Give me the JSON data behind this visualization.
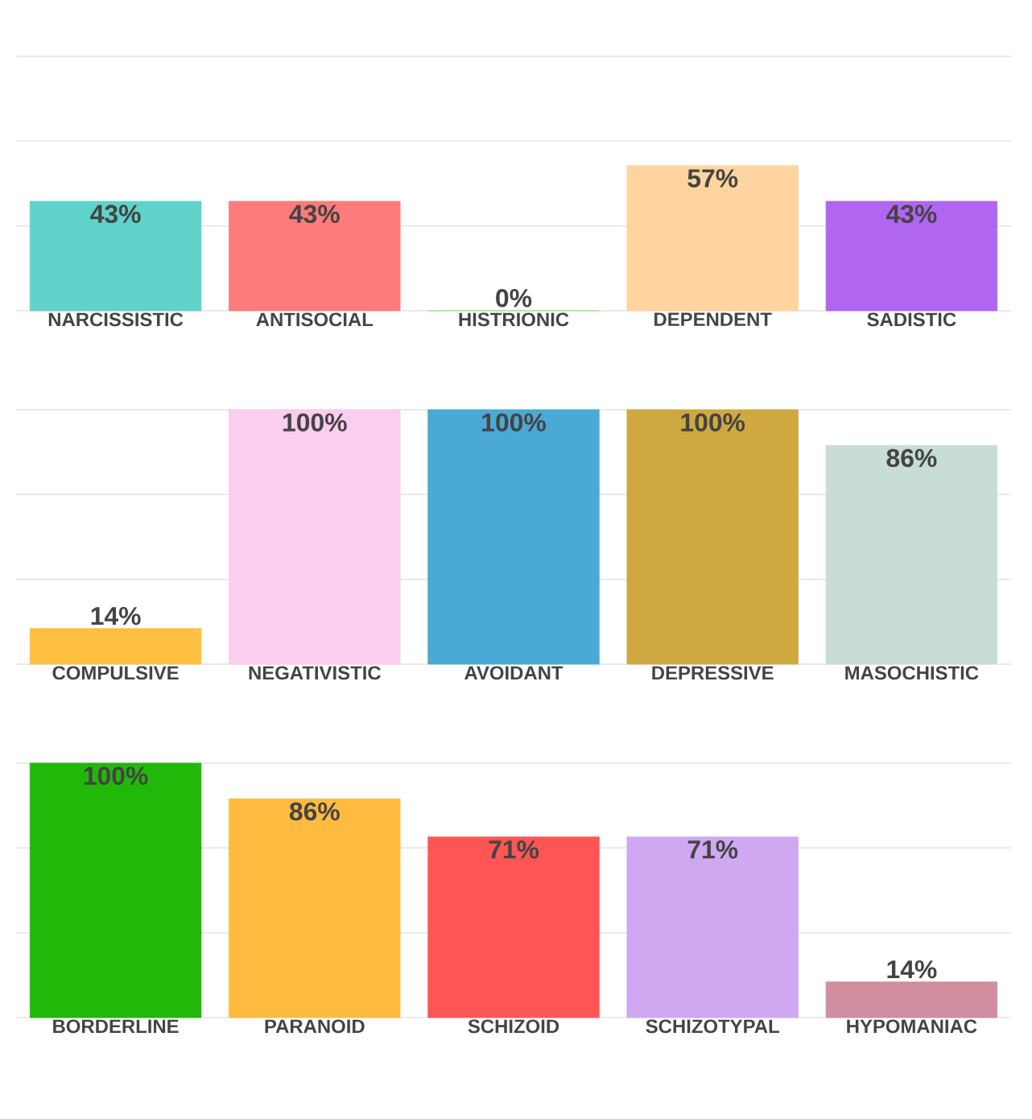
{
  "chart_data": [
    {
      "type": "bar",
      "categories": [
        "NARCISSISTIC",
        "ANTISOCIAL",
        "HISTRIONIC",
        "DEPENDENT",
        "SADISTIC"
      ],
      "values": [
        43,
        43,
        0,
        57,
        43
      ],
      "value_labels": [
        "43%",
        "43%",
        "0%",
        "57%",
        "43%"
      ],
      "colors": [
        "#5fd3c9",
        "#ff7b7b",
        "#90ee70",
        "#ffd49e",
        "#b066f0"
      ],
      "ylim": [
        0,
        100
      ],
      "yticks": [
        {
          "value": 0,
          "label": null
        },
        {
          "value": 33.3,
          "label": null
        },
        {
          "value": 66.7,
          "label": null
        },
        {
          "value": 100,
          "label": null
        }
      ],
      "grid": "y",
      "tick_labels": "x"
    },
    {
      "type": "bar",
      "categories": [
        "COMPULSIVE",
        "NEGATIVISTIC",
        "AVOIDANT",
        "DEPRESSIVE",
        "MASOCHISTIC"
      ],
      "values": [
        14,
        100,
        100,
        100,
        86
      ],
      "value_labels": [
        "14%",
        "100%",
        "100%",
        "100%",
        "86%"
      ],
      "colors": [
        "#ffbf40",
        "#fbcdee",
        "#4ba9d6",
        "#cfa940",
        "#c8ddd4"
      ],
      "ylim": [
        0,
        100
      ],
      "yticks": [
        {
          "value": 0,
          "label": null
        },
        {
          "value": 33.3,
          "label": null
        },
        {
          "value": 66.7,
          "label": null
        },
        {
          "value": 100,
          "label": null
        }
      ],
      "grid": "y",
      "tick_labels": "x"
    },
    {
      "type": "bar",
      "categories": [
        "BORDERLINE",
        "PARANOID",
        "SCHIZOID",
        "SCHIZOTYPAL",
        "HYPOMANIAC"
      ],
      "values": [
        100,
        86,
        71,
        71,
        14
      ],
      "value_labels": [
        "100%",
        "86%",
        "71%",
        "71%",
        "14%"
      ],
      "colors": [
        "#22b80a",
        "#ffbb40",
        "#ff5555",
        "#d0a8f2",
        "#d08ea0"
      ],
      "ylim": [
        0,
        100
      ],
      "yticks": [
        {
          "value": 0,
          "label": null
        },
        {
          "value": 33.3,
          "label": null
        },
        {
          "value": 66.7,
          "label": null
        },
        {
          "value": 100,
          "label": null
        }
      ],
      "grid": "y",
      "tick_labels": "x"
    }
  ]
}
